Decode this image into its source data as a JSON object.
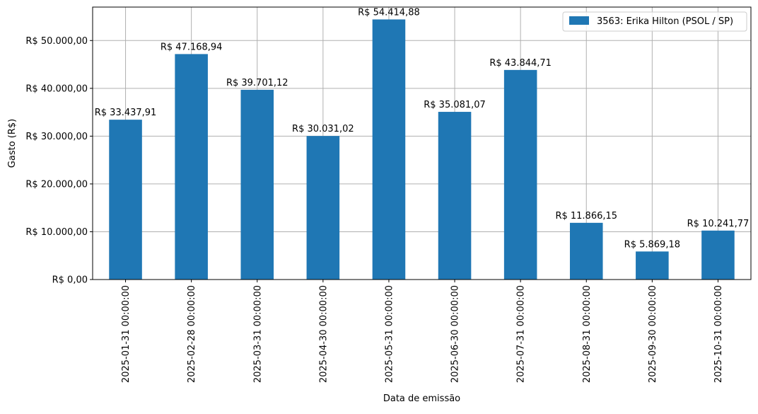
{
  "chart_data": {
    "type": "bar",
    "title": "",
    "xlabel": "Data de emissão",
    "ylabel": "Gasto (R$)",
    "ylim": [
      0,
      57000
    ],
    "yticks": [
      {
        "value": 0,
        "label": "R$ 0,00"
      },
      {
        "value": 10000,
        "label": "R$ 10.000,00"
      },
      {
        "value": 20000,
        "label": "R$ 20.000,00"
      },
      {
        "value": 30000,
        "label": "R$ 30.000,00"
      },
      {
        "value": 40000,
        "label": "R$ 40.000,00"
      },
      {
        "value": 50000,
        "label": "R$ 50.000,00"
      }
    ],
    "categories": [
      "2025-01-31 00:00:00",
      "2025-02-28 00:00:00",
      "2025-03-31 00:00:00",
      "2025-04-30 00:00:00",
      "2025-05-31 00:00:00",
      "2025-06-30 00:00:00",
      "2025-07-31 00:00:00",
      "2025-08-31 00:00:00",
      "2025-09-30 00:00:00",
      "2025-10-31 00:00:00"
    ],
    "series": [
      {
        "name": "3563: Erika Hilton (PSOL / SP)",
        "color": "#1f77b4",
        "values": [
          33437.91,
          47168.94,
          39701.12,
          30031.02,
          54414.88,
          35081.07,
          43844.71,
          11866.15,
          5869.18,
          10241.77
        ],
        "labels": [
          "R$ 33.437,91",
          "R$ 47.168,94",
          "R$ 39.701,12",
          "R$ 30.031,02",
          "R$ 54.414,88",
          "R$ 35.081,07",
          "R$ 43.844,71",
          "R$ 11.866,15",
          "R$ 5.869,18",
          "R$ 10.241,77"
        ]
      }
    ],
    "grid": true,
    "legend_position": "top-right"
  }
}
